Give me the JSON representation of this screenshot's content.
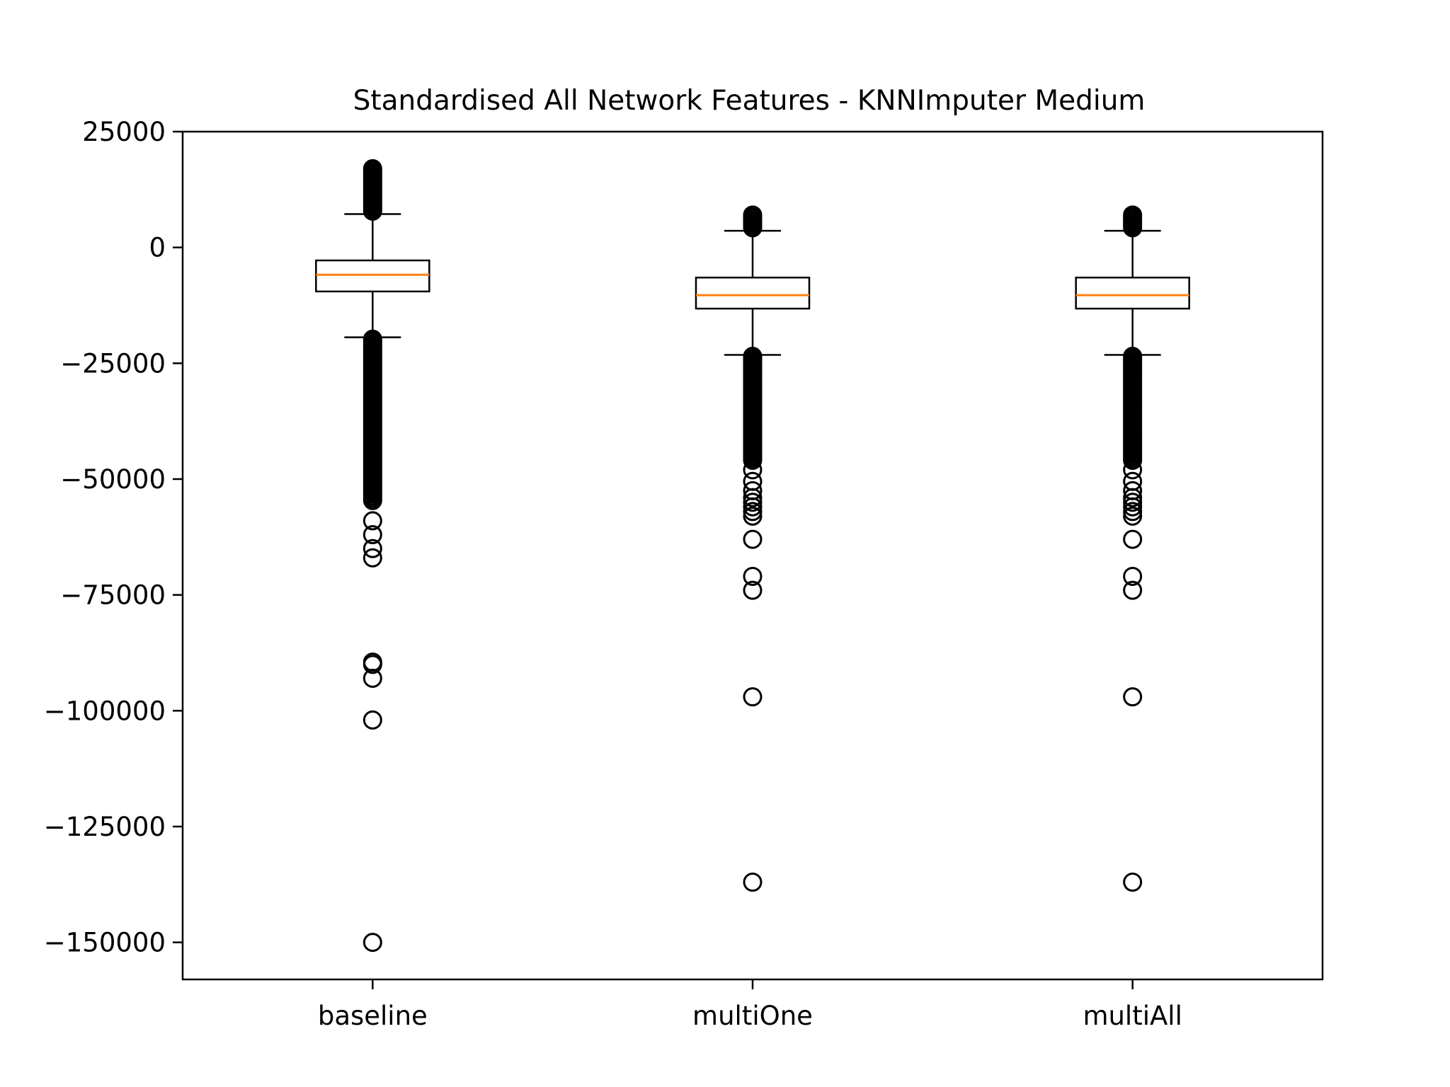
{
  "chart_data": {
    "type": "boxplot",
    "title": "Standardised All Network Features - KNNImputer Medium",
    "xlabel": "",
    "ylabel": "",
    "ylim": [
      -158000,
      25000
    ],
    "yticks": [
      25000,
      0,
      -25000,
      -50000,
      -75000,
      -100000,
      -125000,
      -150000
    ],
    "ytick_labels": [
      "25000",
      "0",
      "−25000",
      "−50000",
      "−75000",
      "−100000",
      "−125000",
      "−150000"
    ],
    "categories": [
      "baseline",
      "multiOne",
      "multiAll"
    ],
    "grid": false,
    "legend": "none",
    "colors": {
      "box": "#000000",
      "median": "#ff7f0e",
      "background": "#ffffff"
    },
    "boxes": [
      {
        "name": "baseline",
        "whisker_high": 7200,
        "q3": -2800,
        "median": -5900,
        "q1": -9500,
        "whisker_low": -19400,
        "outliers_high_range": [
          7400,
          17000
        ],
        "outliers_low_range": [
          -55000,
          -19800
        ],
        "outliers": [
          -59000,
          -62000,
          -65000,
          -67000,
          -89500,
          -90000,
          -93000,
          -102000,
          -150000
        ]
      },
      {
        "name": "multiOne",
        "whisker_high": 3600,
        "q3": -6500,
        "median": -10300,
        "q1": -13200,
        "whisker_low": -23200,
        "outliers_high_range": [
          3800,
          7000
        ],
        "outliers_low_range": [
          -46000,
          -23500
        ],
        "outliers": [
          -48000,
          -50500,
          -52500,
          -54000,
          -55000,
          -56000,
          -57000,
          -58000,
          -63000,
          -71000,
          -74000,
          -97000,
          -137000
        ]
      },
      {
        "name": "multiAll",
        "whisker_high": 3600,
        "q3": -6500,
        "median": -10300,
        "q1": -13200,
        "whisker_low": -23200,
        "outliers_high_range": [
          3800,
          7000
        ],
        "outliers_low_range": [
          -46000,
          -23500
        ],
        "outliers": [
          -48000,
          -50500,
          -52500,
          -54000,
          -55000,
          -56000,
          -57000,
          -58000,
          -63000,
          -71000,
          -74000,
          -97000,
          -137000
        ]
      }
    ]
  }
}
